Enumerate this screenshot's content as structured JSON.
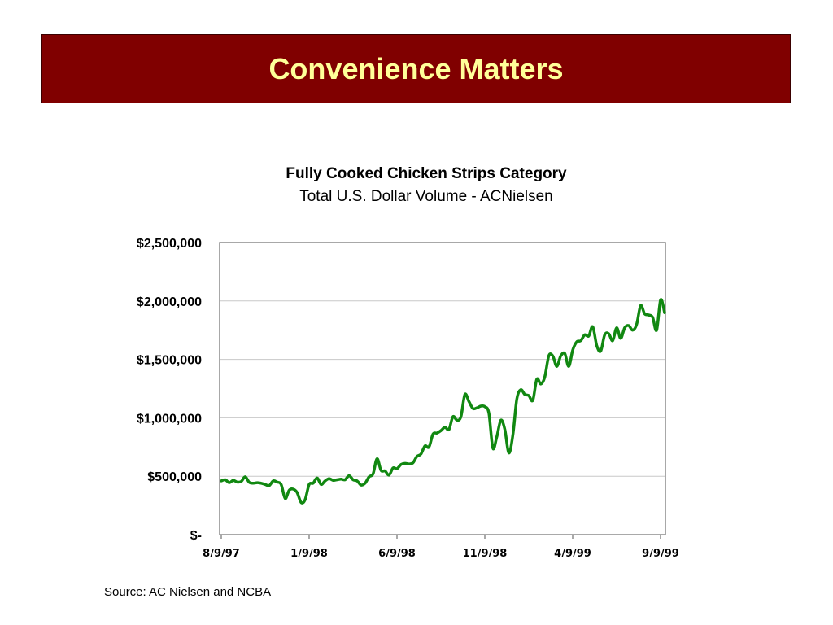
{
  "slide": {
    "title": "Convenience Matters"
  },
  "footer": {
    "source": "Source:  AC Nielsen and NCBA"
  },
  "colors": {
    "banner": "#800000",
    "title_text": "#ffff99",
    "line": "#118811"
  },
  "chart_data": {
    "type": "line",
    "title": "Fully Cooked Chicken Strips Category",
    "subtitle": "Total U.S. Dollar Volume - ACNielsen",
    "xlabel": "",
    "ylabel": "",
    "ylim": [
      0,
      2500000
    ],
    "y_ticks": [
      0,
      500000,
      1000000,
      1500000,
      2000000,
      2500000
    ],
    "y_tick_labels": [
      "$-",
      "$500,000",
      "$1,000,000",
      "$1,500,000",
      "$2,000,000",
      "$2,500,000"
    ],
    "x_tick_labels": [
      "8/9/97",
      "1/9/98",
      "6/9/98",
      "11/9/98",
      "4/9/99",
      "9/9/99"
    ],
    "grid": true,
    "legend": "none",
    "series": [
      {
        "values": [
          460000,
          470000,
          445000,
          465000,
          450000,
          455000,
          495000,
          448000,
          440000,
          445000,
          440000,
          430000,
          420000,
          460000,
          450000,
          430000,
          310000,
          380000,
          390000,
          360000,
          275000,
          300000,
          430000,
          440000,
          485000,
          430000,
          460000,
          480000,
          465000,
          470000,
          475000,
          470000,
          505000,
          470000,
          460000,
          425000,
          440000,
          495000,
          520000,
          650000,
          550000,
          545000,
          510000,
          570000,
          565000,
          600000,
          610000,
          605000,
          615000,
          670000,
          690000,
          760000,
          750000,
          860000,
          870000,
          890000,
          920000,
          900000,
          1010000,
          980000,
          1010000,
          1200000,
          1140000,
          1080000,
          1085000,
          1100000,
          1095000,
          1040000,
          740000,
          840000,
          980000,
          900000,
          700000,
          850000,
          1160000,
          1240000,
          1200000,
          1190000,
          1150000,
          1330000,
          1290000,
          1350000,
          1530000,
          1530000,
          1440000,
          1530000,
          1550000,
          1440000,
          1580000,
          1650000,
          1660000,
          1710000,
          1700000,
          1780000,
          1620000,
          1570000,
          1710000,
          1720000,
          1660000,
          1770000,
          1680000,
          1770000,
          1790000,
          1750000,
          1800000,
          1960000,
          1890000,
          1880000,
          1860000,
          1750000,
          2010000,
          1900000
        ]
      }
    ]
  }
}
